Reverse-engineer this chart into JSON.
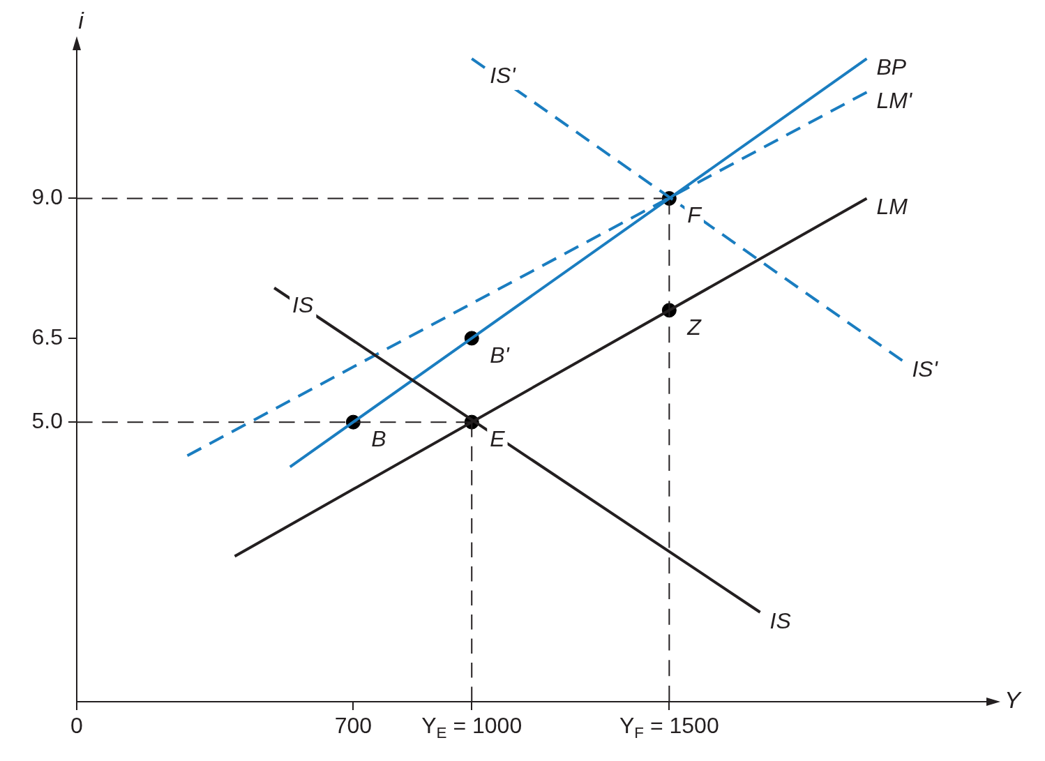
{
  "chart_data": {
    "type": "line",
    "xlabel": "Y",
    "ylabel": "i",
    "xlim": [
      0,
      2310
    ],
    "ylim": [
      0,
      11.7
    ],
    "xticks": [
      {
        "value": 0,
        "label": "0"
      },
      {
        "value": 700,
        "label": "700"
      },
      {
        "value": 1000,
        "label": "Y$_{E}$ = 1000"
      },
      {
        "value": 1500,
        "label": "Y$_{F}$ = 1500"
      }
    ],
    "yticks": [
      {
        "value": 5,
        "label": "5.0"
      },
      {
        "value": 6.5,
        "label": "6.5"
      },
      {
        "value": 9,
        "label": "9.0"
      }
    ],
    "legend": false,
    "series": [
      {
        "name": "IS",
        "color": "#231f20",
        "line_style": "solid",
        "x": [
          500,
          1730
        ],
        "values": [
          7.4,
          1.6
        ]
      },
      {
        "name": "IS'",
        "color": "#1a7dc0",
        "line_style": "dashed",
        "x": [
          1000,
          2090
        ],
        "values": [
          11.5,
          6.1
        ]
      },
      {
        "name": "BP",
        "color": "#1a7dc0",
        "line_style": "solid",
        "x": [
          540,
          2000
        ],
        "values": [
          4.2,
          11.5
        ]
      },
      {
        "name": "LM'",
        "color": "#1a7dc0",
        "line_style": "dashed",
        "x": [
          280,
          2000
        ],
        "values": [
          4.4,
          10.9
        ]
      },
      {
        "name": "LM",
        "color": "#231f20",
        "line_style": "solid",
        "x": [
          400,
          2000
        ],
        "values": [
          2.6,
          9.0
        ]
      },
      {
        "color": "#231f20",
        "line_style": "dashed",
        "x": [
          0,
          1500
        ],
        "values": [
          9,
          9
        ]
      },
      {
        "color": "#231f20",
        "line_style": "dashed",
        "x": [
          0,
          1000
        ],
        "values": [
          5,
          5
        ]
      },
      {
        "color": "#231f20",
        "line_style": "dashed",
        "x": [
          1000,
          1000
        ],
        "values": [
          0,
          5
        ]
      },
      {
        "color": "#231f20",
        "line_style": "dashed",
        "x": [
          1500,
          1500
        ],
        "values": [
          0,
          9
        ]
      },
      {
        "type": "scatter",
        "color": "#000000",
        "marker": "circle",
        "x": [
          700,
          1000,
          1000,
          1500,
          1500
        ],
        "values": [
          5,
          6.5,
          5,
          9,
          7.0
        ]
      }
    ],
    "annotations": [
      {
        "text": "IS",
        "x": 500,
        "y": 7.4
      },
      {
        "text": "IS'",
        "x": 1000,
        "y": 11.5
      },
      {
        "text": "B",
        "x": 700,
        "y": 5
      },
      {
        "text": "B'",
        "x": 1000,
        "y": 6.5
      },
      {
        "text": "E",
        "x": 1000,
        "y": 5
      },
      {
        "text": "F",
        "x": 1500,
        "y": 9
      },
      {
        "text": "Z",
        "x": 1500,
        "y": 7.0
      }
    ]
  }
}
